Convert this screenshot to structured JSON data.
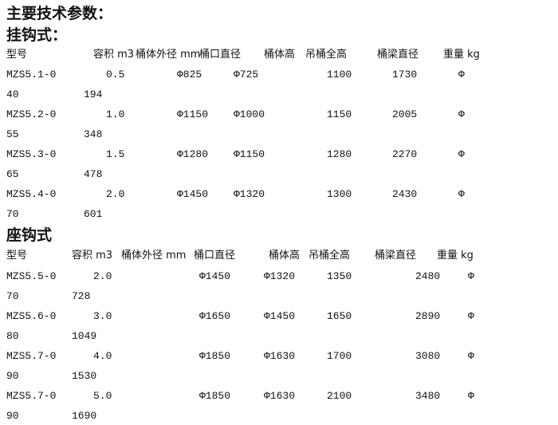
{
  "title": "主要技术参数：",
  "sections": [
    {
      "title": "挂钩式：",
      "headers": [
        "型号",
        "容积 m3",
        "桶体外径 mm",
        "桶口直径",
        "桶体高",
        "吊桶全高",
        "桶梁直径",
        "重量 kg"
      ],
      "rows": [
        {
          "model": "MZS5.1-0",
          "capacity": "0.5",
          "outer": "Φ825",
          "mouth": "Φ725",
          "height": "1100",
          "total": "1730",
          "beam": "Φ",
          "beam2": "40",
          "weight": "194"
        },
        {
          "model": "MZS5.2-0",
          "capacity": "1.0",
          "outer": "Φ1150",
          "mouth": "Φ1000",
          "height": "1150",
          "total": "2005",
          "beam": "Φ",
          "beam2": "55",
          "weight": "348"
        },
        {
          "model": "MZS5.3-0",
          "capacity": "1.5",
          "outer": "Φ1280",
          "mouth": "Φ1150",
          "height": "1280",
          "total": "2270",
          "beam": "Φ",
          "beam2": "65",
          "weight": "478"
        },
        {
          "model": "MZS5.4-0",
          "capacity": "2.0",
          "outer": "Φ1450",
          "mouth": "Φ1320",
          "height": "1300",
          "total": "2430",
          "beam": "Φ",
          "beam2": "70",
          "weight": "601"
        }
      ]
    },
    {
      "title": "座钩式",
      "headers": [
        "型号",
        "容积 m3",
        "桶体外径 mm",
        "桶口直径",
        "桶体高",
        "吊桶全高",
        "桶梁直径",
        "重量 kg"
      ],
      "rows": [
        {
          "model": "MZS5.5-0",
          "capacity": "2.0",
          "outer": "Φ1450",
          "mouth": "Φ1320",
          "height": "1350",
          "total": "2480",
          "beam": "Φ",
          "beam2": "70",
          "weight": "728"
        },
        {
          "model": "MZS5.6-0",
          "capacity": "3.0",
          "outer": "Φ1650",
          "mouth": "Φ1450",
          "height": "1650",
          "total": "2890",
          "beam": "Φ",
          "beam2": "80",
          "weight": "1049"
        },
        {
          "model": "MZS5.7-0",
          "capacity": "4.0",
          "outer": "Φ1850",
          "mouth": "Φ1630",
          "height": "1700",
          "total": "3080",
          "beam": "Φ",
          "beam2": "90",
          "weight": "1530"
        },
        {
          "model": "MZS5.7-0",
          "capacity": "5.0",
          "outer": "Φ1850",
          "mouth": "Φ1630",
          "height": "2100",
          "total": "3480",
          "beam": "Φ",
          "beam2": "90",
          "weight": "1690"
        }
      ]
    }
  ]
}
